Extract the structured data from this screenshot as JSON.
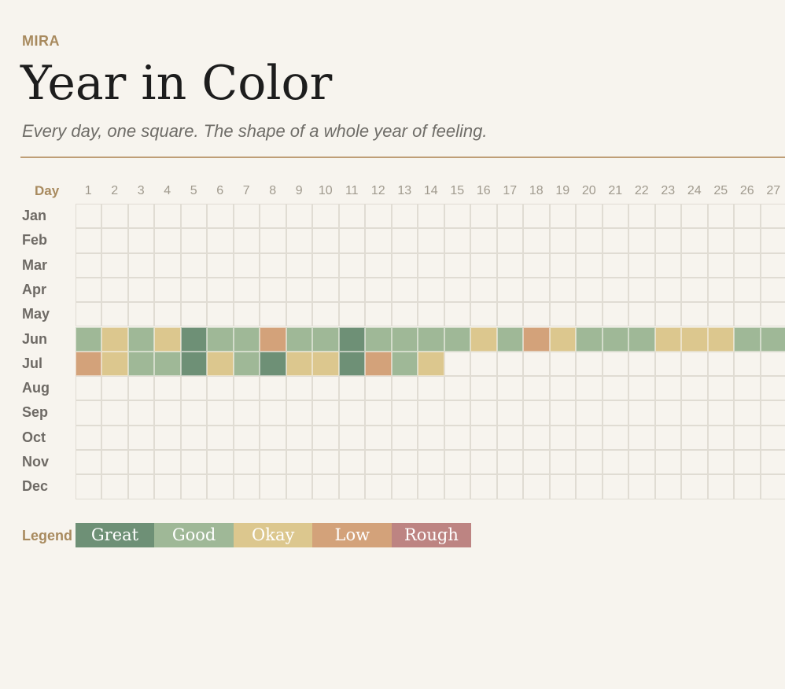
{
  "header": {
    "brand": "MIRA",
    "title": "Year in Color",
    "subtitle": "Every day, one square. The shape of a whole year of feeling."
  },
  "grid": {
    "day_header": "Day",
    "days": [
      "1",
      "2",
      "3",
      "4",
      "5",
      "6",
      "7",
      "8",
      "9",
      "10",
      "11",
      "12",
      "13",
      "14",
      "15",
      "16",
      "17",
      "18",
      "19",
      "20",
      "21",
      "22",
      "23",
      "24",
      "25",
      "26",
      "27"
    ],
    "months": [
      "Jan",
      "Feb",
      "Mar",
      "Apr",
      "May",
      "Jun",
      "Jul",
      "Aug",
      "Sep",
      "Oct",
      "Nov",
      "Dec"
    ],
    "entries": {
      "Jun": [
        "good",
        "okay",
        "good",
        "okay",
        "great",
        "good",
        "good",
        "low",
        "good",
        "good",
        "great",
        "good",
        "good",
        "good",
        "good",
        "okay",
        "good",
        "low",
        "okay",
        "good",
        "good",
        "good",
        "okay",
        "okay",
        "okay",
        "good",
        "good"
      ],
      "Jul": [
        "low",
        "okay",
        "good",
        "good",
        "great",
        "okay",
        "good",
        "great",
        "okay",
        "okay",
        "great",
        "low",
        "good",
        "okay"
      ]
    }
  },
  "legend": {
    "label": "Legend",
    "items": [
      {
        "key": "great",
        "label": "Great",
        "color": "#6e9076"
      },
      {
        "key": "good",
        "label": "Good",
        "color": "#9fb897"
      },
      {
        "key": "okay",
        "label": "Okay",
        "color": "#dcc78e"
      },
      {
        "key": "low",
        "label": "Low",
        "color": "#d3a27a"
      },
      {
        "key": "rough",
        "label": "Rough",
        "color": "#bd8482"
      }
    ]
  },
  "colors": {
    "background": "#f7f4ee",
    "empty_cell": "#f7f4ee",
    "cell_border": "#e0dcd3",
    "accent": "#a88a5e"
  }
}
